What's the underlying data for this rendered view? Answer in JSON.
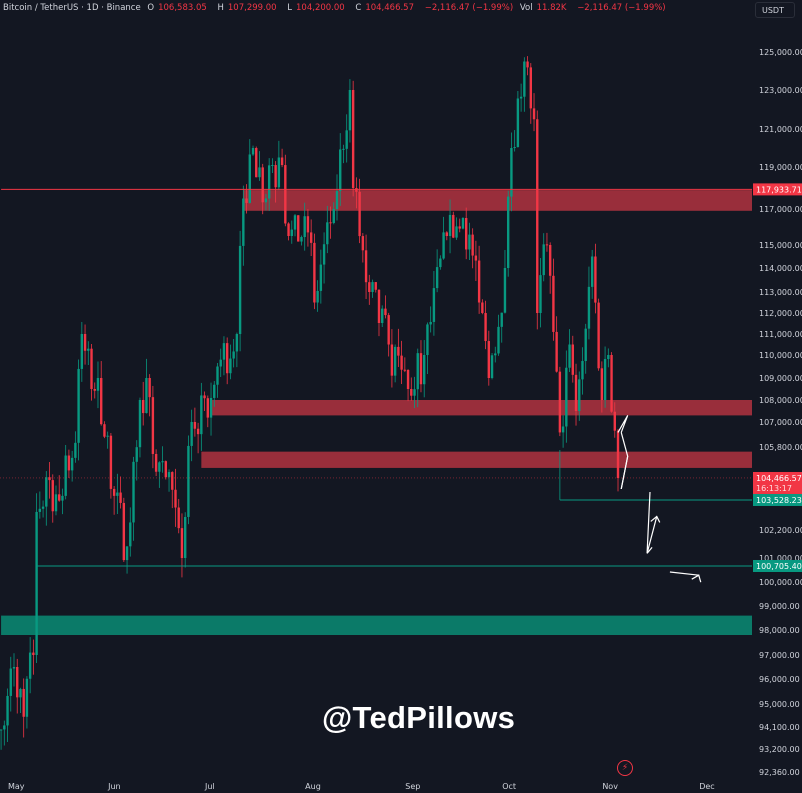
{
  "header": {
    "symbol": "Bitcoin / TetherUS · 1D · Binance",
    "open_label": "O",
    "open": "106,583.05",
    "high_label": "H",
    "high": "107,299.00",
    "low_label": "L",
    "low": "104,200.00",
    "close_label": "C",
    "close": "104,466.57",
    "change": "−2,116.47 (−1.99%)",
    "vol_label": "Vol",
    "vol": "11.82K",
    "vol_change": "−2,116.47 (−1.99%)"
  },
  "unit_button": "USDT",
  "watermark": "@TedPillows",
  "icons": {
    "lightning": "lightning-icon"
  },
  "colors": {
    "background": "#131722",
    "up": "#089981",
    "down": "#f23645",
    "resistance_zone": "#b2323f",
    "support_zone": "#0b7a68",
    "arrows": "#ffffff"
  },
  "chart_data": {
    "type": "candlestick",
    "title": "Bitcoin / TetherUS · 1D · Binance",
    "x_tick_labels": [
      "May",
      "Jun",
      "Jul",
      "Aug",
      "Sep",
      "Oct",
      "Nov",
      "Dec"
    ],
    "y_tick_labels": [
      "125,000.00",
      "123,000.00",
      "121,000.00",
      "119,000.00",
      "117,000.00",
      "115,000.00",
      "114,000.00",
      "113,000.00",
      "112,000.00",
      "111,000.00",
      "110,000.00",
      "109,000.00",
      "108,000.00",
      "107,000.00",
      "105,800.00",
      "102,200.00",
      "101,000.00",
      "100,000.00",
      "99,000.00",
      "98,000.00",
      "97,000.00",
      "96,000.00",
      "95,000.00",
      "94,100.00",
      "93,200.00",
      "92,360.00"
    ],
    "ylim": [
      92360,
      126000
    ],
    "xlim": [
      "2025-04-27",
      "2025-12-05"
    ],
    "close_path": [
      [
        "2025-04-27",
        94000
      ],
      [
        "2025-05-01",
        96500
      ],
      [
        "2025-05-04",
        94500
      ],
      [
        "2025-05-07",
        97000
      ],
      [
        "2025-05-08",
        103000
      ],
      [
        "2025-05-11",
        104500
      ],
      [
        "2025-05-15",
        103500
      ],
      [
        "2025-05-20",
        106000
      ],
      [
        "2025-05-22",
        111000
      ],
      [
        "2025-05-25",
        108500
      ],
      [
        "2025-05-27",
        109000
      ],
      [
        "2025-05-31",
        104000
      ],
      [
        "2025-06-05",
        101500
      ],
      [
        "2025-06-09",
        108000
      ],
      [
        "2025-06-11",
        109000
      ],
      [
        "2025-06-13",
        105500
      ],
      [
        "2025-06-17",
        104500
      ],
      [
        "2025-06-22",
        101000
      ],
      [
        "2025-06-25",
        107000
      ],
      [
        "2025-06-30",
        107200
      ],
      [
        "2025-07-03",
        109500
      ],
      [
        "2025-07-09",
        111000
      ],
      [
        "2025-07-11",
        117500
      ],
      [
        "2025-07-14",
        120000
      ],
      [
        "2025-07-18",
        117500
      ],
      [
        "2025-07-22",
        119500
      ],
      [
        "2025-07-25",
        115500
      ],
      [
        "2025-07-31",
        115700
      ],
      [
        "2025-08-02",
        112500
      ],
      [
        "2025-08-08",
        117000
      ],
      [
        "2025-08-13",
        123000
      ],
      [
        "2025-08-14",
        118000
      ],
      [
        "2025-08-19",
        113000
      ],
      [
        "2025-08-25",
        110500
      ],
      [
        "2025-08-31",
        108500
      ],
      [
        "2025-09-05",
        110000
      ],
      [
        "2025-09-12",
        115500
      ],
      [
        "2025-09-17",
        116500
      ],
      [
        "2025-09-22",
        112500
      ],
      [
        "2025-09-25",
        109000
      ],
      [
        "2025-09-30",
        114000
      ],
      [
        "2025-10-02",
        120000
      ],
      [
        "2025-10-06",
        124500
      ],
      [
        "2025-10-09",
        121500
      ],
      [
        "2025-10-10",
        112000
      ],
      [
        "2025-10-13",
        115000
      ],
      [
        "2025-10-17",
        106500
      ],
      [
        "2025-10-20",
        110500
      ],
      [
        "2025-10-22",
        107500
      ],
      [
        "2025-10-27",
        114500
      ],
      [
        "2025-10-30",
        108000
      ],
      [
        "2025-11-01",
        110000
      ],
      [
        "2025-11-03",
        106583.05
      ],
      [
        "2025-11-04",
        104466.57
      ]
    ],
    "last_candle": {
      "date": "2025-11-04",
      "open": 106583.05,
      "high": 107299.0,
      "low": 104200.0,
      "close": 104466.57
    },
    "horizontal_lines": [
      {
        "price": 117933.71,
        "label": "117,933.71",
        "color": "#f23645",
        "from": "2025-04-27"
      },
      {
        "price": 100705.4,
        "label": "100,705.40",
        "color": "#089981",
        "from": "2025-05-08"
      },
      {
        "price": 103528.23,
        "label": "103,528.23",
        "color": "#089981",
        "from": "2025-10-17"
      }
    ],
    "last_price_label": {
      "price": 104466.57,
      "label": "104,466.57",
      "countdown": "16:13:17"
    },
    "zones": [
      {
        "type": "resistance",
        "top": 117900,
        "bottom": 116900,
        "from": "2025-07-11"
      },
      {
        "type": "resistance",
        "top": 108000,
        "bottom": 107300,
        "from": "2025-07-01"
      },
      {
        "type": "resistance",
        "top": 105600,
        "bottom": 104900,
        "from": "2025-06-28"
      },
      {
        "type": "support",
        "top": 98600,
        "bottom": 97800,
        "from": "2025-04-27"
      }
    ],
    "projection_path": [
      [
        "2025-11-04",
        106500
      ],
      [
        "2025-11-07",
        107300
      ],
      [
        "2025-11-05",
        106500
      ],
      [
        "2025-11-07",
        105400
      ],
      [
        "2025-11-05",
        104000
      ],
      [
        "2025-11-13",
        101200
      ],
      [
        "2025-11-16",
        102800
      ],
      [
        "2025-11-21",
        101600
      ],
      [
        "2025-11-26",
        98900
      ],
      [
        "2025-11-29",
        100300
      ]
    ]
  }
}
